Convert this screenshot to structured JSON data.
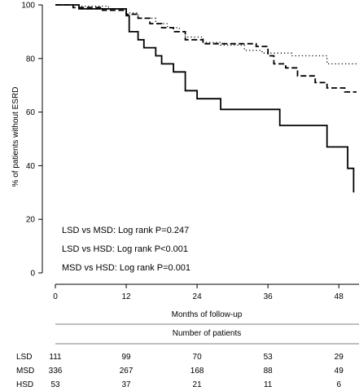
{
  "chart_data": {
    "type": "line",
    "subtype": "kaplan-meier step curve",
    "title": "",
    "xlabel": "Months of follow-up",
    "ylabel": "% of patients without ESRD",
    "xlim": [
      0,
      51
    ],
    "ylim": [
      0,
      100
    ],
    "xticks": [
      0,
      12,
      24,
      36,
      48
    ],
    "yticks": [
      0,
      20,
      40,
      60,
      80,
      100
    ],
    "grid": false,
    "series": [
      {
        "name": "LSD",
        "line_style": "dotted",
        "points": [
          [
            0,
            100
          ],
          [
            4,
            100
          ],
          [
            4,
            99.5
          ],
          [
            9,
            99.5
          ],
          [
            9,
            98.5
          ],
          [
            12,
            98.5
          ],
          [
            12,
            97
          ],
          [
            14,
            97
          ],
          [
            14,
            95
          ],
          [
            17,
            95
          ],
          [
            17,
            93
          ],
          [
            19,
            93
          ],
          [
            19,
            91.5
          ],
          [
            21,
            91.5
          ],
          [
            21,
            90
          ],
          [
            22,
            90
          ],
          [
            22,
            88
          ],
          [
            25,
            88
          ],
          [
            25,
            86
          ],
          [
            28,
            86
          ],
          [
            28,
            85
          ],
          [
            32,
            85
          ],
          [
            32,
            83
          ],
          [
            35,
            83
          ],
          [
            35,
            82
          ],
          [
            40,
            82
          ],
          [
            40,
            81
          ],
          [
            46,
            81
          ],
          [
            46,
            78
          ],
          [
            51,
            78
          ]
        ]
      },
      {
        "name": "MSD",
        "line_style": "dashed",
        "points": [
          [
            0,
            100
          ],
          [
            3,
            100
          ],
          [
            3,
            99
          ],
          [
            8,
            99
          ],
          [
            8,
            98
          ],
          [
            12,
            98
          ],
          [
            12,
            96.5
          ],
          [
            14,
            96.5
          ],
          [
            14,
            95
          ],
          [
            16,
            95
          ],
          [
            16,
            93
          ],
          [
            18,
            93
          ],
          [
            18,
            91.5
          ],
          [
            20,
            91.5
          ],
          [
            20,
            90
          ],
          [
            22,
            90
          ],
          [
            22,
            87
          ],
          [
            25,
            87
          ],
          [
            25,
            85.5
          ],
          [
            34,
            85.5
          ],
          [
            34,
            84.5
          ],
          [
            36,
            84.5
          ],
          [
            36,
            81
          ],
          [
            37,
            81
          ],
          [
            37,
            78
          ],
          [
            39,
            78
          ],
          [
            39,
            76.5
          ],
          [
            41,
            76.5
          ],
          [
            41,
            73.5
          ],
          [
            44,
            73.5
          ],
          [
            44,
            71
          ],
          [
            46,
            71
          ],
          [
            46,
            69
          ],
          [
            49,
            69
          ],
          [
            49,
            67.5
          ],
          [
            51,
            67.5
          ]
        ]
      },
      {
        "name": "HSD",
        "line_style": "solid",
        "points": [
          [
            0,
            100
          ],
          [
            4,
            100
          ],
          [
            4,
            98.5
          ],
          [
            12,
            98.5
          ],
          [
            12,
            96
          ],
          [
            12.5,
            96
          ],
          [
            12.5,
            90
          ],
          [
            14,
            90
          ],
          [
            14,
            87
          ],
          [
            15,
            87
          ],
          [
            15,
            84
          ],
          [
            17,
            84
          ],
          [
            17,
            81
          ],
          [
            18,
            81
          ],
          [
            18,
            78
          ],
          [
            20,
            78
          ],
          [
            20,
            75
          ],
          [
            22,
            75
          ],
          [
            22,
            68
          ],
          [
            24,
            68
          ],
          [
            24,
            65
          ],
          [
            28,
            65
          ],
          [
            28,
            61
          ],
          [
            38,
            61
          ],
          [
            38,
            55
          ],
          [
            46,
            55
          ],
          [
            46,
            47
          ],
          [
            49.5,
            47
          ],
          [
            49.5,
            39
          ],
          [
            50.5,
            39
          ],
          [
            50.5,
            30
          ]
        ]
      }
    ],
    "annotations": [
      "LSD vs MSD: Log rank P=0.247",
      "LSD vs HSD: Log rank P<0.001",
      "MSD vs HSD: Log rank P=0.001"
    ],
    "risk_table": {
      "title": "Number of patients",
      "timepoints": [
        0,
        12,
        24,
        36,
        48
      ],
      "rows": [
        {
          "label": "LSD",
          "values": [
            111,
            99,
            70,
            53,
            29
          ]
        },
        {
          "label": "MSD",
          "values": [
            336,
            267,
            168,
            88,
            49
          ]
        },
        {
          "label": "HSD",
          "values": [
            53,
            37,
            21,
            11,
            6
          ]
        }
      ]
    }
  }
}
